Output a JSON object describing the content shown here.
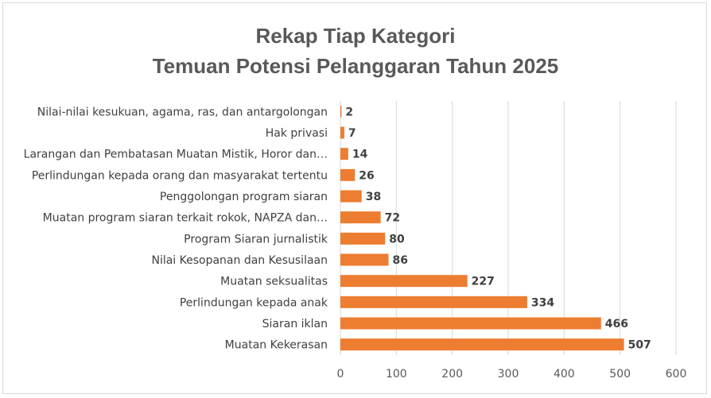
{
  "chart_data": {
    "type": "bar",
    "orientation": "horizontal",
    "title_line1": "Rekap Tiap Kategori",
    "title_line2": "Temuan Potensi Pelanggaran Tahun 2025",
    "categories": [
      "Nilai-nilai kesukuan, agama, ras, dan antargolongan",
      "Hak privasi",
      "Larangan dan Pembatasan Muatan Mistik, Horor dan…",
      "Perlindungan kepada orang dan masyarakat tertentu",
      "Penggolongan program siaran",
      "Muatan program siaran terkait rokok, NAPZA dan…",
      "Program Siaran jurnalistik",
      "Nilai Kesopanan dan Kesusilaan",
      "Muatan seksualitas",
      "Perlindungan kepada anak",
      "Siaran iklan",
      "Muatan Kekerasan"
    ],
    "values": [
      2,
      7,
      14,
      26,
      38,
      72,
      80,
      86,
      227,
      334,
      466,
      507
    ],
    "xlim": [
      0,
      600
    ],
    "xticks": [
      0,
      100,
      200,
      300,
      400,
      500,
      600
    ],
    "grid": true,
    "legend": "none",
    "bar_color": "#ED7D31"
  }
}
